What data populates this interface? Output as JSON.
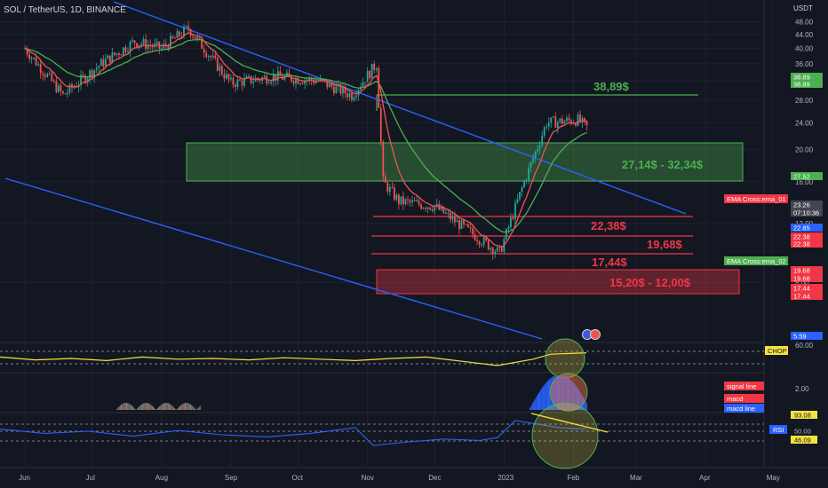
{
  "header": {
    "symbol_title": "SOL / TetherUS, 1D, BINANCE",
    "currency": "USDT"
  },
  "colors": {
    "background": "#131722",
    "grid": "#1e2230",
    "axis_text": "#b2b5be",
    "candle_up": "#26a69a",
    "candle_down": "#ef5350",
    "ema_fast": "#ef5350",
    "ema_slow": "#4caf50",
    "channel": "#2962ff",
    "resistance": "#4caf50",
    "support": "#f23645",
    "chop": "#f5e142",
    "rsi": "#2962ff"
  },
  "chart_data": [
    {
      "type": "candlestick",
      "title": "SOL / TetherUS, 1D, BINANCE",
      "y_scale": "log",
      "y_ticks": [
        "48.00",
        "44.00",
        "40.00",
        "36.00",
        "32.00",
        "28.00",
        "24.00",
        "20.00",
        "16.00",
        "12.00",
        "8.00"
      ],
      "x_ticks": [
        "Jun",
        "Jul",
        "Aug",
        "Sep",
        "Oct",
        "Nov",
        "Dec",
        "2023",
        "Feb",
        "Mar",
        "Apr",
        "May"
      ],
      "key_points": [
        {
          "date": "2022-06-01",
          "close": 40.0
        },
        {
          "date": "2022-06-18",
          "close": 29.0
        },
        {
          "date": "2022-07-05",
          "close": 36.0
        },
        {
          "date": "2022-07-20",
          "close": 42.0
        },
        {
          "date": "2022-08-01",
          "close": 40.0
        },
        {
          "date": "2022-08-13",
          "close": 46.0
        },
        {
          "date": "2022-09-01",
          "close": 31.5
        },
        {
          "date": "2022-09-20",
          "close": 33.0
        },
        {
          "date": "2022-10-10",
          "close": 32.0
        },
        {
          "date": "2022-10-25",
          "close": 29.0
        },
        {
          "date": "2022-11-05",
          "close": 36.0
        },
        {
          "date": "2022-11-08",
          "close": 16.0
        },
        {
          "date": "2022-11-15",
          "close": 14.0
        },
        {
          "date": "2022-12-01",
          "close": 13.5
        },
        {
          "date": "2022-12-30",
          "close": 9.8
        },
        {
          "date": "2023-01-10",
          "close": 16.0
        },
        {
          "date": "2023-01-20",
          "close": 24.0
        },
        {
          "date": "2023-02-03",
          "close": 24.5
        },
        {
          "date": "2023-02-07",
          "close": 23.26
        }
      ],
      "indicators": [
        {
          "name": "EMA Cross:ema_01",
          "value": "23.26"
        },
        {
          "name": "EMA Cross:ema_02",
          "value": "19.68"
        }
      ],
      "annotations": [
        {
          "label": "38,89$",
          "kind": "resistance_line",
          "value": 38.89
        },
        {
          "label": "27,14$ - 32,34$",
          "kind": "resistance_zone",
          "low": 27.14,
          "high": 32.34
        },
        {
          "label": "22,38$",
          "kind": "support_line",
          "value": 22.38
        },
        {
          "label": "19,68$",
          "kind": "support_line",
          "value": 19.68
        },
        {
          "label": "17,44$",
          "kind": "support_line",
          "value": 17.44
        },
        {
          "label": "15,20$ - 12,00$",
          "kind": "support_zone",
          "low": 12.0,
          "high": 15.2
        }
      ],
      "price_tags": [
        {
          "text": "38.89",
          "color": "#4caf50"
        },
        {
          "text": "38.89",
          "color": "#4caf50"
        },
        {
          "text": "27.52",
          "color": "#4caf50"
        },
        {
          "text": "23.26",
          "color": "#434651"
        },
        {
          "text": "07:10:36",
          "color": "#434651"
        },
        {
          "text": "22.85",
          "color": "#2962ff"
        },
        {
          "text": "22.38",
          "color": "#f23645"
        },
        {
          "text": "22.38",
          "color": "#f23645"
        },
        {
          "text": "19.68",
          "color": "#f23645"
        },
        {
          "text": "19.68",
          "color": "#f23645"
        },
        {
          "text": "17.44",
          "color": "#f23645"
        },
        {
          "text": "17.44",
          "color": "#f23645"
        },
        {
          "text": "5.59",
          "color": "#2962ff"
        }
      ]
    },
    {
      "type": "line",
      "name": "CHOP",
      "y_ticks": [
        "60.00"
      ],
      "description_levels": [
        61.8,
        38.2
      ],
      "points": [
        [
          0,
          52
        ],
        [
          40,
          48
        ],
        [
          80,
          50
        ],
        [
          120,
          47
        ],
        [
          160,
          52
        ],
        [
          200,
          49
        ],
        [
          240,
          50
        ],
        [
          280,
          48
        ],
        [
          320,
          51
        ],
        [
          360,
          49
        ],
        [
          400,
          47
        ],
        [
          440,
          50
        ],
        [
          480,
          52
        ],
        [
          520,
          46
        ],
        [
          560,
          40
        ],
        [
          600,
          49
        ],
        [
          620,
          56
        ],
        [
          660,
          58
        ]
      ]
    },
    {
      "type": "bar",
      "name": "MACD",
      "y_ticks": [
        "2.00"
      ],
      "legend": [
        "signal line",
        "macd",
        "macd line"
      ]
    },
    {
      "type": "line",
      "name": "RSI",
      "y_ticks": [
        "93.08",
        "50.00",
        "46.09"
      ],
      "levels": [
        70,
        50,
        30
      ],
      "points": [
        [
          0,
          58
        ],
        [
          50,
          52
        ],
        [
          100,
          55
        ],
        [
          150,
          48
        ],
        [
          200,
          56
        ],
        [
          250,
          50
        ],
        [
          300,
          47
        ],
        [
          350,
          52
        ],
        [
          400,
          60
        ],
        [
          420,
          35
        ],
        [
          460,
          40
        ],
        [
          500,
          44
        ],
        [
          540,
          42
        ],
        [
          560,
          46
        ],
        [
          580,
          70
        ],
        [
          600,
          66
        ],
        [
          630,
          60
        ],
        [
          660,
          58
        ]
      ]
    }
  ]
}
